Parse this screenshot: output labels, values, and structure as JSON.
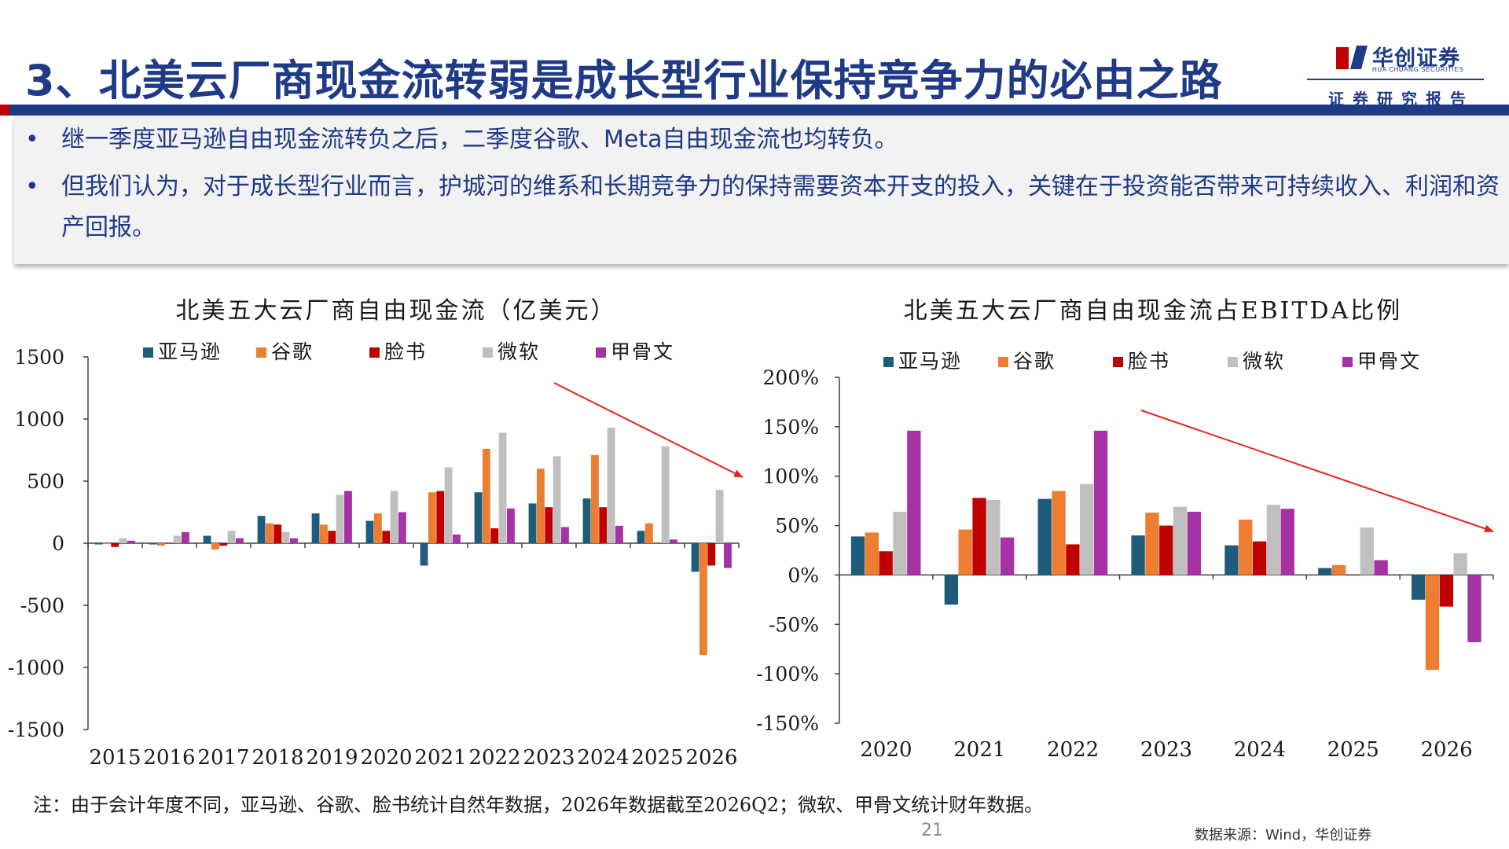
{
  "header": {
    "title": "3、北美云厂商现金流转弱是成长型行业保持竞争力的必由之路",
    "logo_cn": "华创证券",
    "logo_en": "HUA CHUANG SECURITIES",
    "report_tag": "证券研究报告"
  },
  "bullets": [
    "继一季度亚马逊自由现金流转负之后，二季度谷歌、Meta自由现金流也均转负。",
    "但我们认为，对于成长型行业而言，护城河的维系和长期竞争力的保持需要资本开支的投入，关键在于投资能否带来可持续收入、利润和资产回报。"
  ],
  "colors": {
    "amazon": "#1f5c7a",
    "google": "#ed7d31",
    "meta": "#c00000",
    "microsoft": "#bfbfbf",
    "oracle": "#a632a6",
    "title_blue": "#1f3a86",
    "trend_arrow": "#e8231f"
  },
  "chart_data": [
    {
      "type": "bar",
      "title": "北美五大云厂商自由现金流（亿美元）",
      "categories": [
        "2015",
        "2016",
        "2017",
        "2018",
        "2019",
        "2020",
        "2021",
        "2022",
        "2023",
        "2024",
        "2025",
        "2026"
      ],
      "ylim": [
        -1500,
        1500
      ],
      "yticks": [
        "1500",
        "1000",
        "500",
        "0",
        "-500",
        "-1000",
        "-1500"
      ],
      "legend_position": "top",
      "grid": false,
      "series": [
        {
          "name": "亚马逊",
          "color_key": "amazon",
          "values": [
            -10,
            -10,
            60,
            220,
            240,
            180,
            -180,
            410,
            320,
            360,
            100,
            -230
          ]
        },
        {
          "name": "谷歌",
          "color_key": "google",
          "values": [
            0,
            -20,
            -50,
            160,
            150,
            240,
            410,
            760,
            600,
            710,
            160,
            -900
          ]
        },
        {
          "name": "脸书",
          "color_key": "meta",
          "values": [
            -30,
            0,
            -20,
            150,
            100,
            100,
            420,
            120,
            290,
            290,
            0,
            -180
          ]
        },
        {
          "name": "微软",
          "color_key": "microsoft",
          "values": [
            40,
            60,
            100,
            90,
            390,
            420,
            610,
            890,
            700,
            930,
            780,
            430
          ]
        },
        {
          "name": "甲骨文",
          "color_key": "oracle",
          "values": [
            20,
            90,
            40,
            40,
            420,
            250,
            70,
            280,
            130,
            140,
            30,
            -200
          ]
        }
      ]
    },
    {
      "type": "bar",
      "title": "北美五大云厂商自由现金流占EBITDA比例",
      "categories": [
        "2020",
        "2021",
        "2022",
        "2023",
        "2024",
        "2025",
        "2026"
      ],
      "ylim": [
        -150,
        200
      ],
      "yticks": [
        "200%",
        "150%",
        "100%",
        "50%",
        "0%",
        "-50%",
        "-100%",
        "-150%"
      ],
      "legend_position": "top",
      "grid": false,
      "series": [
        {
          "name": "亚马逊",
          "color_key": "amazon",
          "values": [
            39,
            -30,
            77,
            40,
            30,
            7,
            -25
          ]
        },
        {
          "name": "谷歌",
          "color_key": "google",
          "values": [
            43,
            46,
            85,
            63,
            56,
            10,
            -96
          ]
        },
        {
          "name": "脸书",
          "color_key": "meta",
          "values": [
            24,
            78,
            31,
            50,
            34,
            0,
            -32
          ]
        },
        {
          "name": "微软",
          "color_key": "microsoft",
          "values": [
            64,
            76,
            92,
            69,
            71,
            48,
            22
          ]
        },
        {
          "name": "甲骨文",
          "color_key": "oracle",
          "values": [
            146,
            38,
            146,
            64,
            67,
            15,
            -68
          ]
        }
      ]
    }
  ],
  "footer": {
    "note": "注：由于会计年度不同，亚马逊、谷歌、脸书统计自然年数据，2026年数据截至2026Q2；微软、甲骨文统计财年数据。",
    "page_number": "21",
    "source": "数据来源：Wind，华创证券"
  }
}
